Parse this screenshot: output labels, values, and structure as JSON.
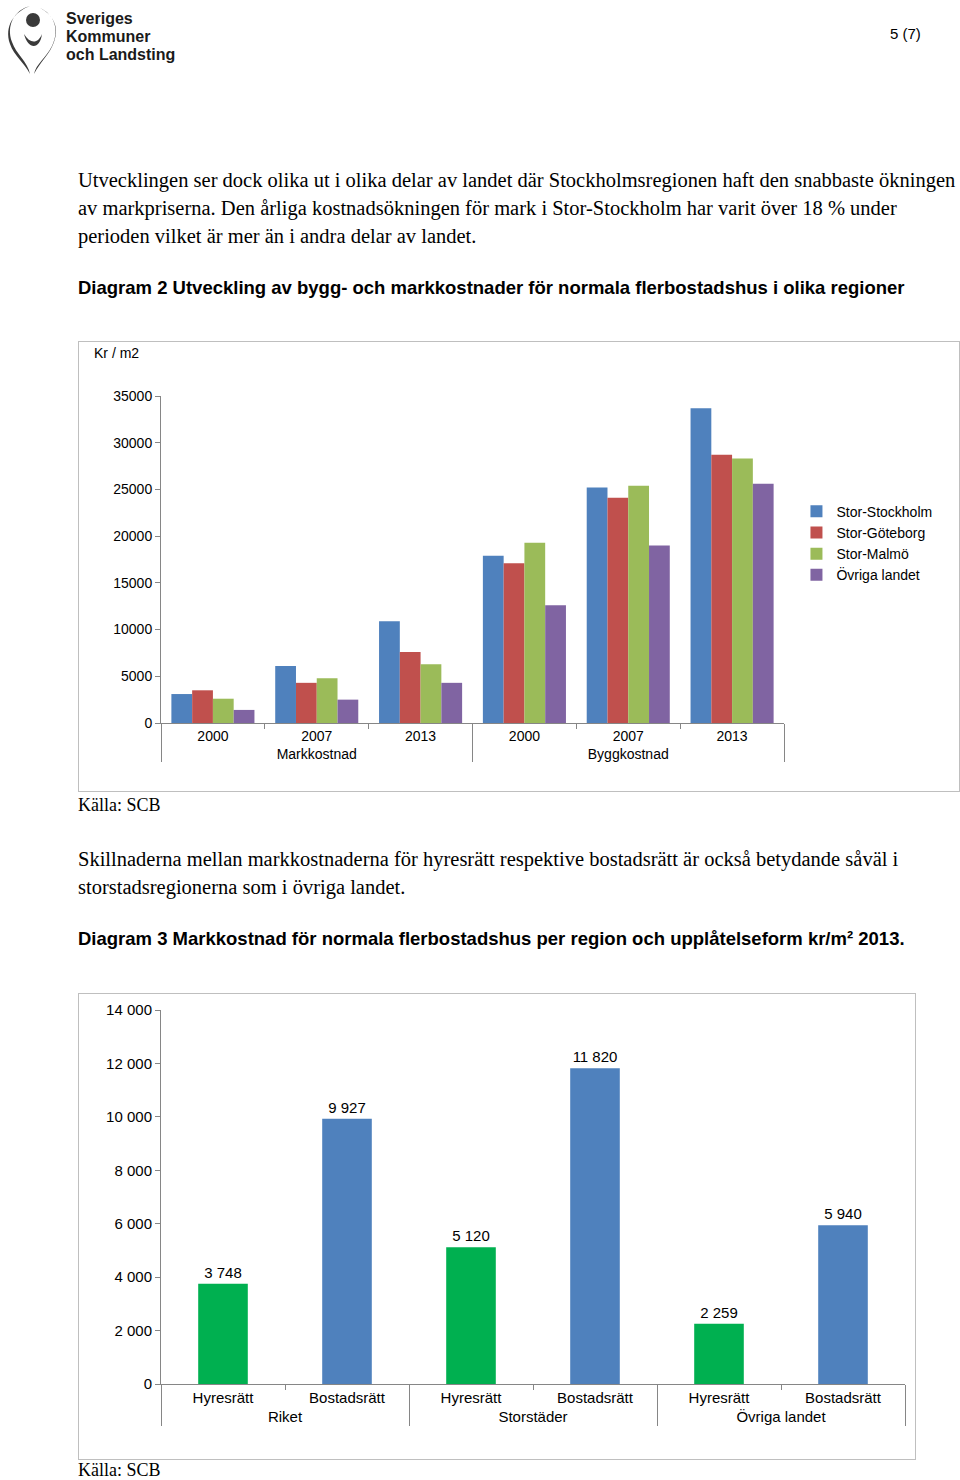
{
  "header": {
    "organization": [
      "Sveriges",
      "Kommuner",
      "och Landsting"
    ],
    "page": "5 (7)"
  },
  "paragraphs": [
    "Utvecklingen ser dock olika ut i olika delar av landet där Stockholmsregionen haft den snabbaste ökningen av markpriserna. Den årliga kostnadsökningen för mark i Stor-Stockholm har varit över 18 % under perioden vilket är mer än i andra delar av landet.",
    "Skillnaderna mellan markkostnaderna för hyresrätt respektive bostadsrätt är också betydande såväl i storstadsregionerna som i övriga landet."
  ],
  "chart_data": [
    {
      "type": "bar",
      "title": "Diagram 2 Utveckling av bygg- och markkostnader för normala flerbostadshus i olika regioner",
      "y_label": "Kr / m2",
      "category_groups": [
        "Markkostnad",
        "Markkostnad",
        "Markkostnad",
        "Byggkostnad",
        "Byggkostnad",
        "Byggkostnad"
      ],
      "categories": [
        "2000",
        "2007",
        "2013",
        "2000",
        "2007",
        "2013"
      ],
      "series": [
        {
          "name": "Stor-Stockholm",
          "color": "#4f81bd",
          "values": [
            3100,
            6100,
            10900,
            17900,
            25200,
            33700
          ]
        },
        {
          "name": "Stor-Göteborg",
          "color": "#c0504d",
          "values": [
            3500,
            4300,
            7600,
            17100,
            24100,
            28700
          ]
        },
        {
          "name": "Stor-Malmö",
          "color": "#9bbb59",
          "values": [
            2600,
            4800,
            6300,
            19300,
            25400,
            28300
          ]
        },
        {
          "name": "Övriga landet",
          "color": "#8064a2",
          "values": [
            1400,
            2500,
            4300,
            12600,
            19000,
            25600
          ]
        }
      ],
      "ylim": [
        0,
        35000
      ],
      "yticks": [
        0,
        5000,
        10000,
        15000,
        20000,
        25000,
        30000,
        35000
      ],
      "grid": false,
      "legend": "right",
      "source": "Källa: SCB"
    },
    {
      "type": "bar",
      "title": "Diagram 3 Markkostnad för normala flerbostadshus per region och upplåtelseform kr/m² 2013.",
      "category_groups": [
        "Riket",
        "Riket",
        "Storstäder",
        "Storstäder",
        "Övriga landet",
        "Övriga landet"
      ],
      "categories": [
        "Hyresrätt",
        "Bostadsrätt",
        "Hyresrätt",
        "Bostadsrätt",
        "Hyresrätt",
        "Bostadsrätt"
      ],
      "values": [
        3748,
        9927,
        5120,
        11820,
        2259,
        5940
      ],
      "value_labels": [
        "3 748",
        "9 927",
        "5 120",
        "11 820",
        "2 259",
        "5 940"
      ],
      "colors": [
        "#00b050",
        "#4f81bd",
        "#00b050",
        "#4f81bd",
        "#00b050",
        "#4f81bd"
      ],
      "data_labels": true,
      "ylim": [
        0,
        14000
      ],
      "yticks": [
        0,
        {
          "value": 2000,
          "label": "2 000"
        },
        {
          "value": 4000,
          "label": "4 000"
        },
        {
          "value": 6000,
          "label": "6 000"
        },
        {
          "value": 8000,
          "label": "8 000"
        },
        {
          "value": 10000,
          "label": "10 000"
        },
        {
          "value": 12000,
          "label": "12 000"
        },
        {
          "value": 14000,
          "label": "14 000"
        }
      ],
      "grid": false,
      "source": "Källa: SCB"
    }
  ]
}
